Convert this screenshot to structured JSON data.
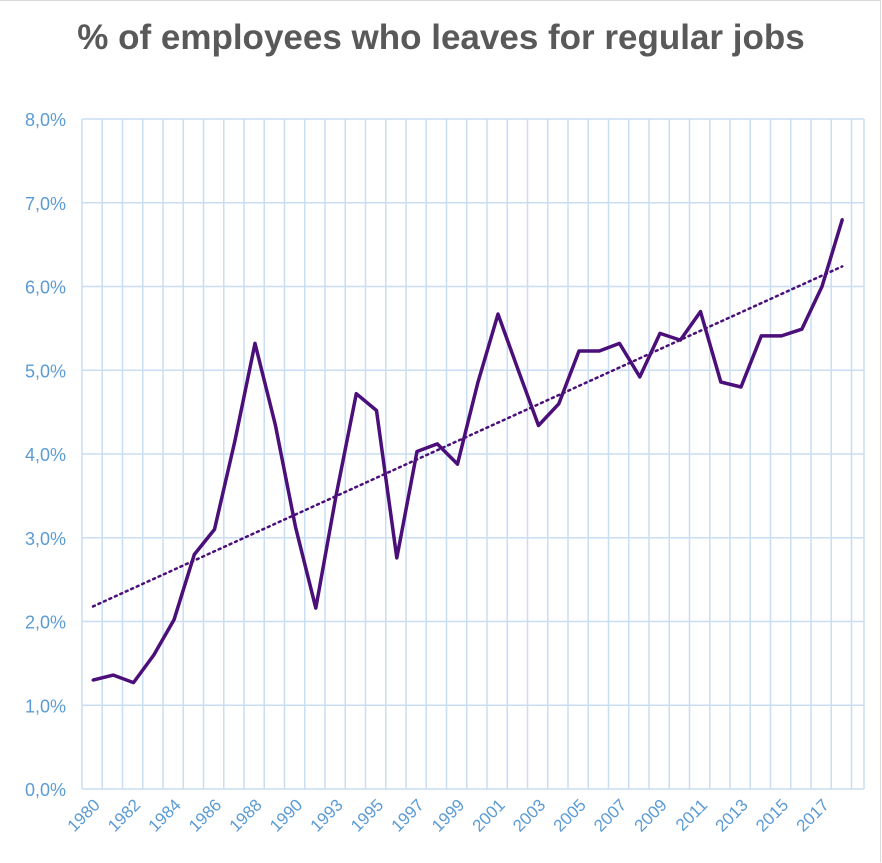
{
  "chart_data": {
    "type": "line",
    "title": "% of employees who leaves for regular jobs",
    "xlabel": "",
    "ylabel": "",
    "ylim": [
      0,
      8
    ],
    "y_ticks": [
      "0,0%",
      "1,0%",
      "2,0%",
      "3,0%",
      "4,0%",
      "5,0%",
      "6,0%",
      "7,0%",
      "8,0%"
    ],
    "x_tick_labels": [
      "1980",
      "1982",
      "1984",
      "1986",
      "1988",
      "1990",
      "1993",
      "1995",
      "1997",
      "1999",
      "2001",
      "2003",
      "2005",
      "2007",
      "2009",
      "2011",
      "2013",
      "2015",
      "2017"
    ],
    "grid": true,
    "line_color": "#4b0f7a",
    "grid_color": "#c9def2",
    "tick_color": "#5b9bd5",
    "series": [
      {
        "values": [
          1.3,
          1.36,
          1.27,
          1.6,
          2.02,
          2.8,
          3.1,
          4.15,
          5.32,
          4.35,
          3.13,
          2.16,
          3.5,
          4.72,
          4.52,
          2.76,
          4.03,
          4.12,
          3.88,
          4.85,
          5.67,
          5.0,
          4.34,
          4.6,
          5.23,
          5.23,
          5.32,
          4.92,
          5.44,
          5.36,
          5.7,
          4.86,
          4.8,
          5.41,
          5.41,
          5.49,
          6.0,
          6.8
        ]
      }
    ],
    "trendline": {
      "style": "dotted",
      "type": "linear",
      "start": 2.18,
      "end": 6.24
    }
  }
}
